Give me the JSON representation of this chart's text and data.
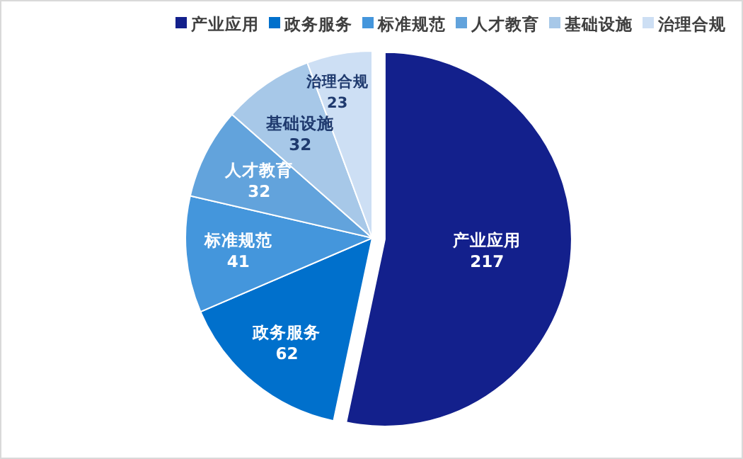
{
  "chart_data": {
    "type": "pie",
    "categories": [
      "产业应用",
      "政务服务",
      "标准规范",
      "人才教育",
      "基础设施",
      "治理合规"
    ],
    "values": [
      217,
      62,
      41,
      32,
      32,
      23
    ],
    "colors": [
      "#13208c",
      "#0070cc",
      "#4496dc",
      "#62a3dc",
      "#a7c8e8",
      "#cddff4"
    ],
    "data_labels": true,
    "legend": "top right"
  }
}
